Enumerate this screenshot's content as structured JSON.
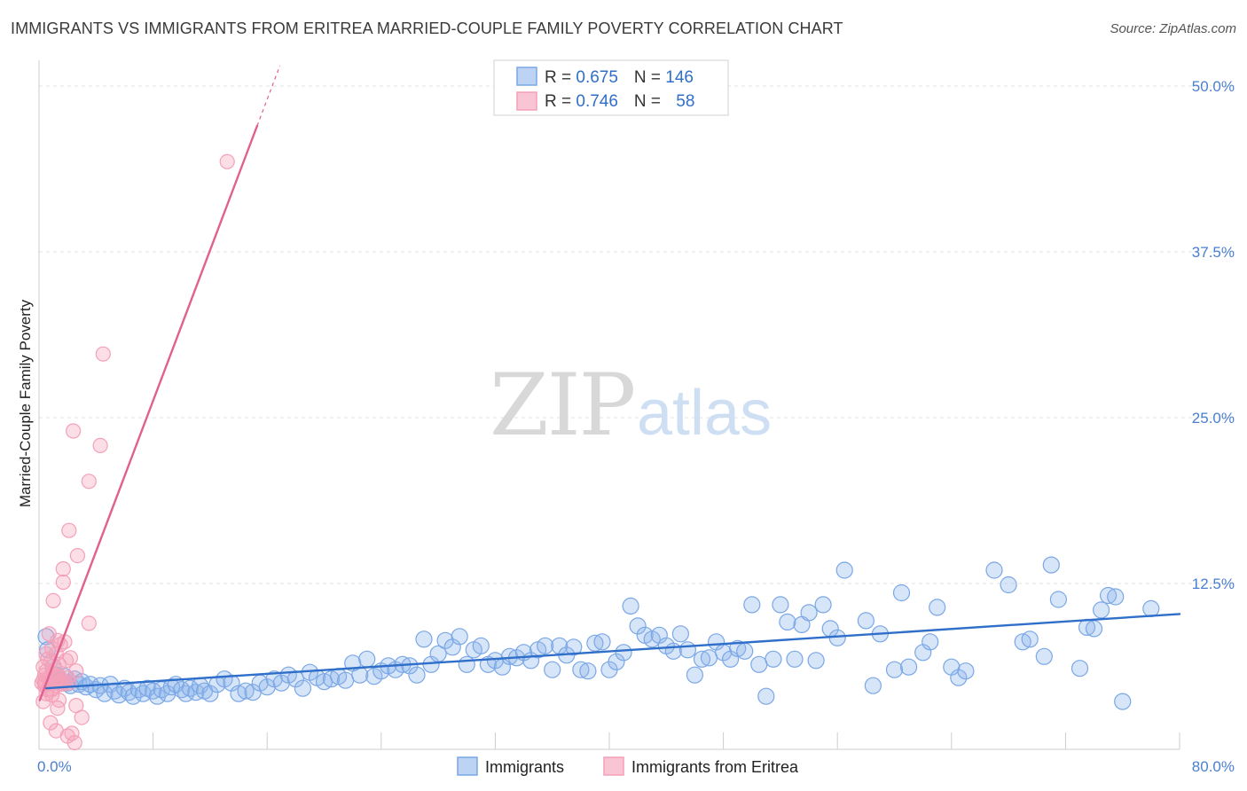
{
  "chart_data": {
    "type": "scatter",
    "title": "IMMIGRANTS VS IMMIGRANTS FROM ERITREA MARRIED-COUPLE FAMILY POVERTY CORRELATION CHART",
    "source": "Source: ZipAtlas.com",
    "watermark": {
      "zip": "ZIP",
      "atlas": "atlas"
    },
    "ylabel": "Married-Couple Family Poverty",
    "xlim": [
      0,
      80
    ],
    "ylim": [
      0,
      50
    ],
    "x_tick_labels": [
      {
        "value": 0,
        "label": "0.0%"
      },
      {
        "value": 80,
        "label": "80.0%"
      }
    ],
    "y_ticks": [
      {
        "value": 12.5,
        "label": "12.5%"
      },
      {
        "value": 25,
        "label": "25.0%"
      },
      {
        "value": 37.5,
        "label": "37.5%"
      },
      {
        "value": 50,
        "label": "50.0%"
      }
    ],
    "x_minor_ticks": [
      8,
      16,
      24,
      32,
      40,
      48,
      56,
      64,
      72,
      80
    ],
    "legend": {
      "entries": [
        {
          "r_label": "R = ",
          "r_value": "0.675",
          "n_label": "N = ",
          "n_value": "146"
        },
        {
          "r_label": "R = ",
          "r_value": "0.746",
          "n_label": "N = ",
          "n_value": "58"
        }
      ]
    },
    "series": [
      {
        "name": "Immigrants",
        "color": "#7aa7e6",
        "line_color": "#2f6fc9",
        "trend": {
          "x0": 0.5,
          "y0": 4.6,
          "x1": 80,
          "y1": 10.2
        },
        "points": [
          [
            0.5,
            8.5
          ],
          [
            0.6,
            7.5
          ],
          [
            1.0,
            6.2
          ],
          [
            1.2,
            5.6
          ],
          [
            1.5,
            5.2
          ],
          [
            1.8,
            5.5
          ],
          [
            2,
            5
          ],
          [
            2.2,
            4.8
          ],
          [
            2.5,
            5.3
          ],
          [
            2.8,
            4.9
          ],
          [
            3,
            5.1
          ],
          [
            3.3,
            4.7
          ],
          [
            3.6,
            4.9
          ],
          [
            4,
            4.5
          ],
          [
            4.3,
            4.8
          ],
          [
            4.6,
            4.2
          ],
          [
            5,
            4.9
          ],
          [
            5.3,
            4.4
          ],
          [
            5.6,
            4.1
          ],
          [
            6,
            4.6
          ],
          [
            6.3,
            4.3
          ],
          [
            6.6,
            4.0
          ],
          [
            7,
            4.5
          ],
          [
            7.3,
            4.2
          ],
          [
            7.6,
            4.6
          ],
          [
            8,
            4.4
          ],
          [
            8.3,
            4.0
          ],
          [
            8.6,
            4.5
          ],
          [
            9,
            4.2
          ],
          [
            9.3,
            4.7
          ],
          [
            9.6,
            4.9
          ],
          [
            10,
            4.5
          ],
          [
            10.3,
            4.2
          ],
          [
            10.6,
            4.6
          ],
          [
            11,
            4.3
          ],
          [
            11.3,
            4.8
          ],
          [
            11.6,
            4.4
          ],
          [
            12,
            4.2
          ],
          [
            12.5,
            4.9
          ],
          [
            13,
            5.3
          ],
          [
            13.5,
            5.0
          ],
          [
            14,
            4.2
          ],
          [
            14.5,
            4.4
          ],
          [
            15,
            4.3
          ],
          [
            15.5,
            5.0
          ],
          [
            16,
            4.7
          ],
          [
            16.5,
            5.3
          ],
          [
            17,
            5.0
          ],
          [
            17.5,
            5.6
          ],
          [
            18,
            5.3
          ],
          [
            18.5,
            4.6
          ],
          [
            19,
            5.8
          ],
          [
            19.5,
            5.4
          ],
          [
            20,
            5.1
          ],
          [
            20.5,
            5.3
          ],
          [
            21,
            5.5
          ],
          [
            21.5,
            5.2
          ],
          [
            22,
            6.5
          ],
          [
            22.5,
            5.6
          ],
          [
            23,
            6.8
          ],
          [
            23.5,
            5.5
          ],
          [
            24,
            5.9
          ],
          [
            24.5,
            6.3
          ],
          [
            25,
            6.0
          ],
          [
            25.5,
            6.4
          ],
          [
            26,
            6.3
          ],
          [
            26.5,
            5.6
          ],
          [
            27,
            8.3
          ],
          [
            27.5,
            6.4
          ],
          [
            28,
            7.2
          ],
          [
            28.5,
            8.2
          ],
          [
            29,
            7.7
          ],
          [
            29.5,
            8.5
          ],
          [
            30,
            6.4
          ],
          [
            30.5,
            7.5
          ],
          [
            31,
            7.8
          ],
          [
            31.5,
            6.4
          ],
          [
            32,
            6.7
          ],
          [
            32.5,
            6.2
          ],
          [
            33,
            7.0
          ],
          [
            33.5,
            6.9
          ],
          [
            34,
            7.3
          ],
          [
            34.5,
            6.7
          ],
          [
            35,
            7.5
          ],
          [
            35.5,
            7.8
          ],
          [
            36,
            6.0
          ],
          [
            36.5,
            7.8
          ],
          [
            37,
            7.1
          ],
          [
            37.5,
            7.7
          ],
          [
            38,
            6.0
          ],
          [
            38.5,
            5.9
          ],
          [
            39,
            8.0
          ],
          [
            39.5,
            8.1
          ],
          [
            40,
            6.0
          ],
          [
            40.5,
            6.6
          ],
          [
            41,
            7.3
          ],
          [
            41.5,
            10.8
          ],
          [
            42,
            9.3
          ],
          [
            42.5,
            8.6
          ],
          [
            43,
            8.3
          ],
          [
            43.5,
            8.6
          ],
          [
            44,
            7.8
          ],
          [
            44.5,
            7.4
          ],
          [
            45,
            8.7
          ],
          [
            45.5,
            7.5
          ],
          [
            46,
            5.6
          ],
          [
            46.5,
            6.8
          ],
          [
            47,
            6.9
          ],
          [
            47.5,
            8.1
          ],
          [
            48,
            7.3
          ],
          [
            48.5,
            6.8
          ],
          [
            49,
            7.6
          ],
          [
            49.5,
            7.4
          ],
          [
            50,
            10.9
          ],
          [
            50.5,
            6.4
          ],
          [
            51,
            4.0
          ],
          [
            51.5,
            6.8
          ],
          [
            52,
            10.9
          ],
          [
            52.5,
            9.6
          ],
          [
            53,
            6.8
          ],
          [
            53.5,
            9.4
          ],
          [
            54,
            10.3
          ],
          [
            54.5,
            6.7
          ],
          [
            55,
            10.9
          ],
          [
            55.5,
            9.1
          ],
          [
            56,
            8.4
          ],
          [
            56.5,
            13.5
          ],
          [
            58,
            9.7
          ],
          [
            58.5,
            4.8
          ],
          [
            59,
            8.7
          ],
          [
            60,
            6.0
          ],
          [
            60.5,
            11.8
          ],
          [
            61,
            6.2
          ],
          [
            62,
            7.3
          ],
          [
            62.5,
            8.1
          ],
          [
            63,
            10.7
          ],
          [
            64,
            6.2
          ],
          [
            64.5,
            5.4
          ],
          [
            65,
            5.9
          ],
          [
            67,
            13.5
          ],
          [
            68,
            12.4
          ],
          [
            69,
            8.1
          ],
          [
            69.5,
            8.3
          ],
          [
            70.5,
            7.0
          ],
          [
            71,
            13.9
          ],
          [
            71.5,
            11.3
          ],
          [
            73,
            6.1
          ],
          [
            73.5,
            9.2
          ],
          [
            74,
            9.1
          ],
          [
            74.5,
            10.5
          ],
          [
            75,
            11.6
          ],
          [
            75.5,
            11.5
          ],
          [
            76,
            3.6
          ],
          [
            78,
            10.6
          ]
        ]
      },
      {
        "name": "Immigrants from Eritrea",
        "color": "#f4a0b8",
        "line_color": "#e0608f",
        "trend": {
          "x0": 0.05,
          "y0": 3.7,
          "x1": 15.3,
          "y1": 47.0
        },
        "points": [
          [
            0.2,
            5.0
          ],
          [
            0.3,
            6.2
          ],
          [
            0.3,
            5.2
          ],
          [
            0.4,
            4.8
          ],
          [
            0.4,
            5.6
          ],
          [
            0.5,
            7.2
          ],
          [
            0.5,
            5.9
          ],
          [
            0.6,
            6.8
          ],
          [
            0.6,
            4.5
          ],
          [
            0.7,
            5.4
          ],
          [
            0.7,
            8.7
          ],
          [
            0.8,
            6.6
          ],
          [
            0.8,
            5.0
          ],
          [
            0.9,
            4.1
          ],
          [
            0.9,
            7.6
          ],
          [
            1.0,
            11.2
          ],
          [
            1.0,
            5.7
          ],
          [
            1.1,
            6.0
          ],
          [
            1.1,
            5.3
          ],
          [
            1.2,
            7.2
          ],
          [
            1.2,
            4.8
          ],
          [
            1.3,
            3.1
          ],
          [
            1.3,
            8.2
          ],
          [
            1.4,
            5.5
          ],
          [
            1.4,
            6.4
          ],
          [
            1.5,
            5.0
          ],
          [
            1.5,
            7.9
          ],
          [
            1.6,
            5.2
          ],
          [
            1.6,
            4.9
          ],
          [
            1.7,
            12.6
          ],
          [
            1.7,
            13.6
          ],
          [
            1.8,
            5.1
          ],
          [
            1.8,
            8.1
          ],
          [
            1.9,
            6.7
          ],
          [
            2.0,
            5.4
          ],
          [
            2.0,
            1.0
          ],
          [
            2.1,
            16.5
          ],
          [
            2.1,
            5.0
          ],
          [
            2.2,
            6.9
          ],
          [
            2.3,
            1.2
          ],
          [
            2.4,
            24.0
          ],
          [
            2.6,
            5.9
          ],
          [
            2.6,
            3.3
          ],
          [
            2.7,
            14.6
          ],
          [
            3.0,
            2.4
          ],
          [
            3.5,
            20.2
          ],
          [
            3.5,
            9.5
          ],
          [
            4.3,
            22.9
          ],
          [
            4.5,
            29.8
          ],
          [
            13.2,
            44.3
          ],
          [
            0.3,
            3.6
          ],
          [
            0.5,
            4.2
          ],
          [
            0.8,
            2.0
          ],
          [
            1.2,
            1.4
          ],
          [
            1.4,
            3.7
          ],
          [
            2.5,
            0.5
          ],
          [
            0.4,
            5.0
          ],
          [
            0.9,
            4.5
          ]
        ]
      }
    ],
    "bottom_legend": [
      "Immigrants",
      "Immigrants from Eritrea"
    ]
  }
}
